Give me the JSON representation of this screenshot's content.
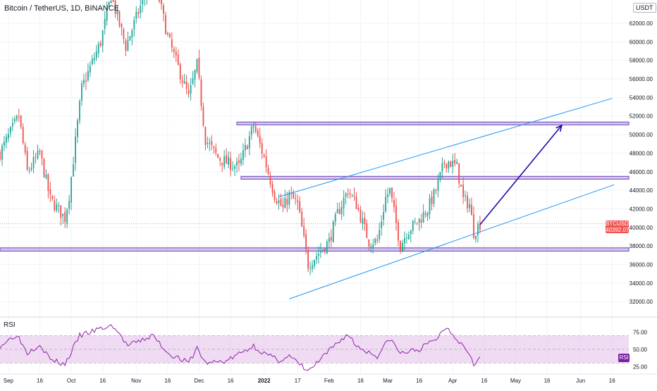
{
  "header": {
    "title": "Bitcoin / TetherUS, 1D, BINANCE",
    "unit": "USDT"
  },
  "rsi": {
    "label": "RSI",
    "current_label": "RSI"
  },
  "last_price": {
    "symbol": "BTCUSDT",
    "value": "40392.07",
    "countdown": "10:11:19"
  },
  "colors": {
    "up": "#26a69a",
    "down": "#ef5350",
    "zone": "#7e57c2",
    "zone_fill": "#b39ddb",
    "channel": "#2196f3",
    "arrow": "#1a0dab",
    "rsi_line": "#8e24aa",
    "rsi_band": "#e1bee7"
  },
  "chart_data": [
    {
      "type": "candlestick",
      "title": "Bitcoin / TetherUS, 1D, BINANCE",
      "ylim": [
        30500,
        64500
      ],
      "y_ticks": [
        "62000.00",
        "60000.00",
        "58000.00",
        "56000.00",
        "54000.00",
        "52000.00",
        "50000.00",
        "48000.00",
        "46000.00",
        "44000.00",
        "42000.00",
        "40000.00",
        "38000.00",
        "36000.00",
        "34000.00",
        "32000.00"
      ],
      "y_tick_values": [
        62000,
        60000,
        58000,
        56000,
        54000,
        52000,
        50000,
        48000,
        46000,
        44000,
        42000,
        40000,
        38000,
        36000,
        34000,
        32000
      ],
      "x_tick_labels": [
        "Sep",
        "16",
        "Oct",
        "16",
        "Nov",
        "16",
        "Dec",
        "16",
        "2022",
        "17",
        "Feb",
        "16",
        "Mar",
        "16",
        "Apr",
        "16",
        "May",
        "16",
        "Jun",
        "16"
      ],
      "x_tick_dates": [
        "2021-09-01",
        "2021-09-16",
        "2021-10-01",
        "2021-10-16",
        "2021-11-01",
        "2021-11-16",
        "2021-12-01",
        "2021-12-16",
        "2022-01-01",
        "2022-01-17",
        "2022-02-01",
        "2022-02-16",
        "2022-03-01",
        "2022-03-16",
        "2022-04-01",
        "2022-04-16",
        "2022-05-01",
        "2022-05-16",
        "2022-06-01",
        "2022-06-16"
      ],
      "close_path": [
        {
          "date": "2021-08-28",
          "close": 48000
        },
        {
          "date": "2021-09-06",
          "close": 52000
        },
        {
          "date": "2021-09-10",
          "close": 46000
        },
        {
          "date": "2021-09-16",
          "close": 48000
        },
        {
          "date": "2021-09-21",
          "close": 43000
        },
        {
          "date": "2021-09-28",
          "close": 41000
        },
        {
          "date": "2021-09-30",
          "close": 43500
        },
        {
          "date": "2021-10-06",
          "close": 55000
        },
        {
          "date": "2021-10-15",
          "close": 60000
        },
        {
          "date": "2021-10-20",
          "close": 65000
        },
        {
          "date": "2021-10-27",
          "close": 59500
        },
        {
          "date": "2021-11-09",
          "close": 67500
        },
        {
          "date": "2021-11-16",
          "close": 60500
        },
        {
          "date": "2021-11-26",
          "close": 54000
        },
        {
          "date": "2021-11-30",
          "close": 57500
        },
        {
          "date": "2021-12-04",
          "close": 49500
        },
        {
          "date": "2021-12-10",
          "close": 47500
        },
        {
          "date": "2021-12-14",
          "close": 47000
        },
        {
          "date": "2021-12-20",
          "close": 46500
        },
        {
          "date": "2021-12-27",
          "close": 51000
        },
        {
          "date": "2022-01-01",
          "close": 47500
        },
        {
          "date": "2022-01-06",
          "close": 43500
        },
        {
          "date": "2022-01-10",
          "close": 42000
        },
        {
          "date": "2022-01-13",
          "close": 43500
        },
        {
          "date": "2022-01-17",
          "close": 42500
        },
        {
          "date": "2022-01-22",
          "close": 36000
        },
        {
          "date": "2022-01-24",
          "close": 36500
        },
        {
          "date": "2022-01-28",
          "close": 37500
        },
        {
          "date": "2022-02-01",
          "close": 38500
        },
        {
          "date": "2022-02-05",
          "close": 41500
        },
        {
          "date": "2022-02-10",
          "close": 44000
        },
        {
          "date": "2022-02-14",
          "close": 42500
        },
        {
          "date": "2022-02-20",
          "close": 38500
        },
        {
          "date": "2022-02-24",
          "close": 38500
        },
        {
          "date": "2022-02-28",
          "close": 43200
        },
        {
          "date": "2022-03-02",
          "close": 44000
        },
        {
          "date": "2022-03-07",
          "close": 38000
        },
        {
          "date": "2022-03-10",
          "close": 39500
        },
        {
          "date": "2022-03-16",
          "close": 40800
        },
        {
          "date": "2022-03-20",
          "close": 42000
        },
        {
          "date": "2022-03-24",
          "close": 44000
        },
        {
          "date": "2022-03-28",
          "close": 47000
        },
        {
          "date": "2022-03-30",
          "close": 47100
        },
        {
          "date": "2022-04-03",
          "close": 46500
        },
        {
          "date": "2022-04-06",
          "close": 43000
        },
        {
          "date": "2022-04-09",
          "close": 42500
        },
        {
          "date": "2022-04-11",
          "close": 39500
        },
        {
          "date": "2022-04-14",
          "close": 40392
        }
      ],
      "horizontal_zones": [
        {
          "from": 51050,
          "to": 51350,
          "start": "2021-12-19"
        },
        {
          "from": 45200,
          "to": 45500,
          "start": "2021-12-21"
        },
        {
          "from": 37450,
          "to": 37800,
          "start": "2021-08-28"
        }
      ],
      "channel_lines": [
        {
          "from": {
            "date": "2022-01-08",
            "price": 43300
          },
          "to": {
            "date": "2022-06-16",
            "price": 53900
          }
        },
        {
          "from": {
            "date": "2022-01-13",
            "price": 32300
          },
          "to": {
            "date": "2022-06-17",
            "price": 44600
          }
        }
      ],
      "projection_arrow": {
        "from": {
          "date": "2022-04-14",
          "price": 40300
        },
        "to": {
          "date": "2022-05-23",
          "price": 51000
        }
      },
      "last_price": 40392.07
    },
    {
      "type": "line",
      "title": "RSI",
      "ylim": [
        15,
        95
      ],
      "y_ticks": [
        "75.00",
        "50.00",
        "25.00"
      ],
      "y_tick_values": [
        75,
        50,
        25
      ],
      "band": [
        30,
        70
      ],
      "series": [
        {
          "values": [
            {
              "date": "2021-08-28",
              "rsi": 55
            },
            {
              "date": "2021-09-05",
              "rsi": 72
            },
            {
              "date": "2021-09-10",
              "rsi": 45
            },
            {
              "date": "2021-09-16",
              "rsi": 58
            },
            {
              "date": "2021-09-21",
              "rsi": 35
            },
            {
              "date": "2021-09-28",
              "rsi": 28
            },
            {
              "date": "2021-10-05",
              "rsi": 70
            },
            {
              "date": "2021-10-15",
              "rsi": 80
            },
            {
              "date": "2021-10-21",
              "rsi": 84
            },
            {
              "date": "2021-10-28",
              "rsi": 55
            },
            {
              "date": "2021-11-09",
              "rsi": 70
            },
            {
              "date": "2021-11-16",
              "rsi": 45
            },
            {
              "date": "2021-11-26",
              "rsi": 30
            },
            {
              "date": "2021-11-30",
              "rsi": 52
            },
            {
              "date": "2021-12-04",
              "rsi": 30
            },
            {
              "date": "2021-12-14",
              "rsi": 33
            },
            {
              "date": "2021-12-27",
              "rsi": 55
            },
            {
              "date": "2022-01-01",
              "rsi": 44
            },
            {
              "date": "2022-01-08",
              "rsi": 34
            },
            {
              "date": "2022-01-13",
              "rsi": 40
            },
            {
              "date": "2022-01-22",
              "rsi": 18
            },
            {
              "date": "2022-01-28",
              "rsi": 35
            },
            {
              "date": "2022-02-05",
              "rsi": 60
            },
            {
              "date": "2022-02-10",
              "rsi": 72
            },
            {
              "date": "2022-02-14",
              "rsi": 55
            },
            {
              "date": "2022-02-24",
              "rsi": 40
            },
            {
              "date": "2022-03-02",
              "rsi": 66
            },
            {
              "date": "2022-03-07",
              "rsi": 44
            },
            {
              "date": "2022-03-16",
              "rsi": 50
            },
            {
              "date": "2022-03-24",
              "rsi": 65
            },
            {
              "date": "2022-03-29",
              "rsi": 83
            },
            {
              "date": "2022-04-04",
              "rsi": 62
            },
            {
              "date": "2022-04-09",
              "rsi": 45
            },
            {
              "date": "2022-04-11",
              "rsi": 30
            },
            {
              "date": "2022-04-14",
              "rsi": 37
            }
          ]
        }
      ],
      "current_value": 37
    }
  ]
}
